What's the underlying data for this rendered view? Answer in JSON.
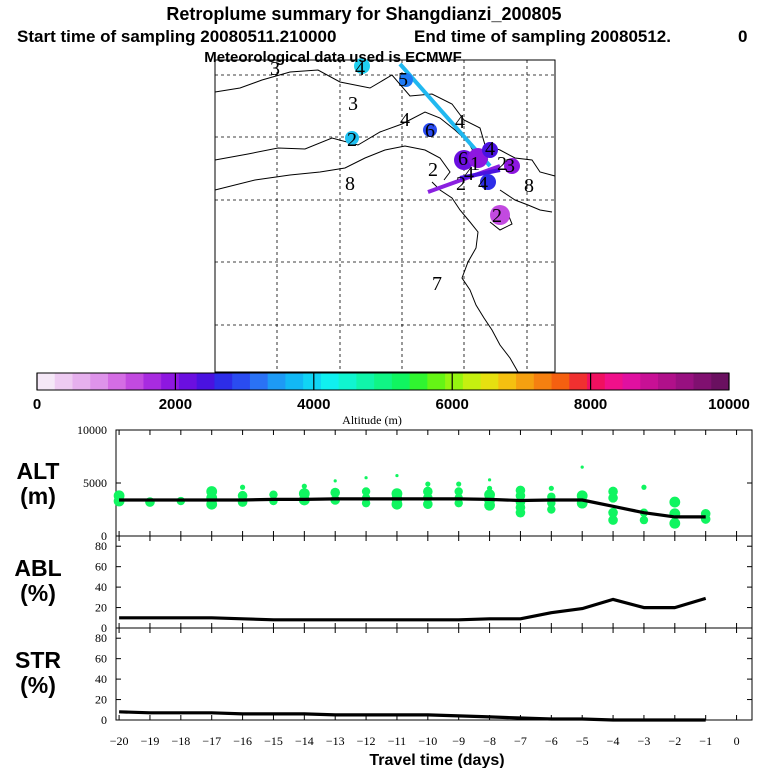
{
  "title": {
    "line1": "Retroplume summary for Shangdianzi_200805",
    "line2_start": "Start time of sampling 20080511.210000",
    "line2_end": "End time of sampling 20080512.",
    "line2_zero": "0",
    "line3": "Meteorological data used is ECMWF"
  },
  "map": {
    "region_labels": [
      "3",
      "4",
      "3",
      "2",
      "8",
      "4",
      "4",
      "6",
      "1",
      "4",
      "2",
      "2",
      "3",
      "8",
      "2",
      "7",
      "5",
      "6",
      "4",
      "4",
      "2"
    ]
  },
  "colorbar": {
    "title": "Altitude (m)",
    "ticks": [
      "0",
      "2000",
      "4000",
      "6000",
      "8000",
      "10000"
    ],
    "colors": [
      "#f5e8f7",
      "#eecbf2",
      "#e6b0ee",
      "#de93ea",
      "#d46de4",
      "#c24ae0",
      "#a82be0",
      "#8e17e0",
      "#6b0fe0",
      "#4a12e0",
      "#2d2de8",
      "#2a4cf0",
      "#2a72f5",
      "#1d9af5",
      "#12b8f5",
      "#10d4f5",
      "#10f0f0",
      "#10f5d0",
      "#10f5aa",
      "#10f585",
      "#10f560",
      "#30f530",
      "#65f515",
      "#95f510",
      "#c5f010",
      "#e6e010",
      "#f5c010",
      "#f5a010",
      "#f58010",
      "#f56010",
      "#f03030",
      "#f01060",
      "#f0108a",
      "#e010a0",
      "#c81095",
      "#b0108a",
      "#981080",
      "#801070",
      "#6a1060"
    ],
    "units_max": 10000
  },
  "chart_data": [
    {
      "type": "line",
      "panel": "ALT",
      "ylabel": "ALT\n(m)",
      "ylabel_line1": "ALT",
      "ylabel_line2": "(m)",
      "ylim": [
        0,
        10000
      ],
      "yticks": [
        "0",
        "5000",
        "10000"
      ],
      "x": [
        -20,
        -19,
        -18,
        -17,
        -16,
        -15,
        -14,
        -13,
        -12,
        -11,
        -10,
        -9,
        -8,
        -7,
        -6,
        -5,
        -4,
        -3,
        -2,
        -1
      ],
      "values": [
        3400,
        3400,
        3400,
        3400,
        3400,
        3450,
        3450,
        3500,
        3500,
        3500,
        3500,
        3500,
        3450,
        3350,
        3400,
        3400,
        2800,
        2200,
        1800,
        1800
      ],
      "scatter_points": [
        [
          -20,
          3300
        ],
        [
          -20,
          3800
        ],
        [
          -19,
          3200
        ],
        [
          -18,
          3300
        ],
        [
          -17,
          3000
        ],
        [
          -17,
          3600
        ],
        [
          -17,
          4200
        ],
        [
          -16,
          3200
        ],
        [
          -16,
          3800
        ],
        [
          -16,
          4600
        ],
        [
          -15,
          3300
        ],
        [
          -15,
          3900
        ],
        [
          -14,
          3400
        ],
        [
          -14,
          4000
        ],
        [
          -14,
          4700
        ],
        [
          -13,
          3400
        ],
        [
          -13,
          4100
        ],
        [
          -13,
          5200
        ],
        [
          -12,
          3100
        ],
        [
          -12,
          3600
        ],
        [
          -12,
          4200
        ],
        [
          -12,
          5500
        ],
        [
          -11,
          3000
        ],
        [
          -11,
          3500
        ],
        [
          -11,
          4000
        ],
        [
          -11,
          5700
        ],
        [
          -10,
          3000
        ],
        [
          -10,
          3600
        ],
        [
          -10,
          4200
        ],
        [
          -10,
          4900
        ],
        [
          -9,
          3100
        ],
        [
          -9,
          3600
        ],
        [
          -9,
          4200
        ],
        [
          -9,
          4900
        ],
        [
          -8,
          2900
        ],
        [
          -8,
          3400
        ],
        [
          -8,
          3900
        ],
        [
          -8,
          4500
        ],
        [
          -8,
          5300
        ],
        [
          -7,
          2700
        ],
        [
          -7,
          3200
        ],
        [
          -7,
          3800
        ],
        [
          -7,
          4300
        ],
        [
          -7,
          2200
        ],
        [
          -6,
          2500
        ],
        [
          -6,
          3100
        ],
        [
          -6,
          3700
        ],
        [
          -6,
          4500
        ],
        [
          -5,
          3100
        ],
        [
          -5,
          3800
        ],
        [
          -5,
          6500
        ],
        [
          -4,
          1500
        ],
        [
          -4,
          2200
        ],
        [
          -4,
          3600
        ],
        [
          -4,
          4200
        ],
        [
          -3,
          1500
        ],
        [
          -3,
          2200
        ],
        [
          -3,
          4600
        ],
        [
          -2,
          1200
        ],
        [
          -2,
          2100
        ],
        [
          -2,
          3200
        ],
        [
          -1,
          1600
        ],
        [
          -1,
          2100
        ]
      ]
    },
    {
      "type": "line",
      "panel": "ABL",
      "ylabel": "ABL\n(%)",
      "ylabel_line1": "ABL",
      "ylabel_line2": "(%)",
      "ylim": [
        0,
        90
      ],
      "yticks": [
        "0",
        "20",
        "40",
        "60",
        "80"
      ],
      "x": [
        -20,
        -19,
        -18,
        -17,
        -16,
        -15,
        -14,
        -13,
        -12,
        -11,
        -10,
        -9,
        -8,
        -7,
        -6,
        -5,
        -4,
        -3,
        -2,
        -1
      ],
      "values": [
        10,
        10,
        10,
        10,
        9,
        8,
        8,
        8,
        8,
        8,
        8,
        8,
        9,
        9,
        15,
        19,
        28,
        20,
        20,
        29
      ]
    },
    {
      "type": "line",
      "panel": "STR",
      "ylabel": "STR\n(%)",
      "ylabel_line1": "STR",
      "ylabel_line2": "(%)",
      "ylim": [
        0,
        90
      ],
      "yticks": [
        "0",
        "20",
        "40",
        "60",
        "80"
      ],
      "x": [
        -20,
        -19,
        -18,
        -17,
        -16,
        -15,
        -14,
        -13,
        -12,
        -11,
        -10,
        -9,
        -8,
        -7,
        -6,
        -5,
        -4,
        -3,
        -2,
        -1
      ],
      "values": [
        8,
        7,
        7,
        7,
        6,
        6,
        6,
        5,
        5,
        5,
        5,
        4,
        3,
        2,
        1,
        1,
        0,
        0,
        0,
        0
      ]
    }
  ],
  "xaxis": {
    "label": "Travel time (days)",
    "ticks": [
      "-20",
      "-19",
      "-18",
      "-17",
      "-16",
      "-15",
      "-14",
      "-13",
      "-12",
      "-11",
      "-10",
      "-9",
      "-8",
      "-7",
      "-6",
      "-5",
      "-4",
      "-3",
      "-2",
      "-1",
      "0"
    ],
    "range": [
      -20.1,
      0.5
    ]
  }
}
